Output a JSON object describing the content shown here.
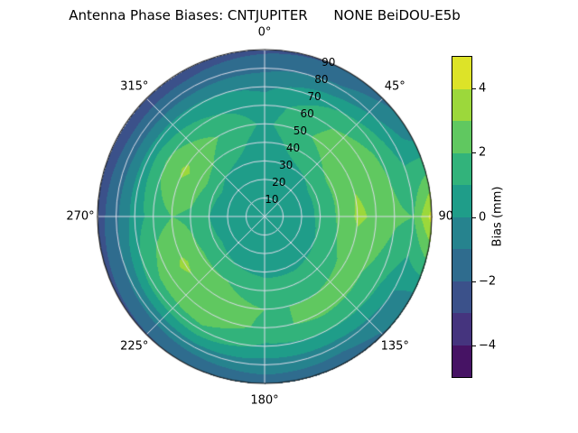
{
  "chart_data": {
    "type": "heatmap",
    "subtype": "polar_contourf",
    "title": "Antenna Phase Biases: CNTJUPITER      NONE BeiDOU-E5b",
    "angular_ticks": [
      {
        "angle": 0,
        "label": "0°"
      },
      {
        "angle": 45,
        "label": "45°"
      },
      {
        "angle": 90,
        "label": "90°"
      },
      {
        "angle": 135,
        "label": "135°"
      },
      {
        "angle": 180,
        "label": "180°"
      },
      {
        "angle": 225,
        "label": "225°"
      },
      {
        "angle": 270,
        "label": "270°"
      },
      {
        "angle": 315,
        "label": "315°"
      }
    ],
    "radial_ticks": [
      {
        "value": 10,
        "label": "10"
      },
      {
        "value": 20,
        "label": "20"
      },
      {
        "value": 30,
        "label": "30"
      },
      {
        "value": 40,
        "label": "40"
      },
      {
        "value": 50,
        "label": "50"
      },
      {
        "value": 60,
        "label": "60"
      },
      {
        "value": 70,
        "label": "70"
      },
      {
        "value": 80,
        "label": "80"
      },
      {
        "value": 90,
        "label": "90"
      }
    ],
    "radial_label_angle_deg": 22.5,
    "azimuth_deg": [
      0,
      30,
      60,
      90,
      120,
      150,
      180,
      210,
      240,
      270,
      300,
      330
    ],
    "zenith_deg": [
      0,
      10,
      20,
      30,
      40,
      50,
      60,
      70,
      80,
      90
    ],
    "bias_mm": [
      [
        0.3,
        0.3,
        0.3,
        0.3,
        0.3,
        0.3,
        0.3,
        0.3,
        0.3,
        0.3,
        0.3,
        0.3
      ],
      [
        0.3,
        0.3,
        0.4,
        0.4,
        0.4,
        0.3,
        0.3,
        0.3,
        0.4,
        0.3,
        0.4,
        0.3
      ],
      [
        0.4,
        0.5,
        0.6,
        0.6,
        0.5,
        0.5,
        0.5,
        0.5,
        0.6,
        0.5,
        0.6,
        0.5
      ],
      [
        0.5,
        0.8,
        1.2,
        1.2,
        1.0,
        0.8,
        0.8,
        1.0,
        1.2,
        1.0,
        1.2,
        0.8
      ],
      [
        0.5,
        1.5,
        2.2,
        2.2,
        1.8,
        1.5,
        1.5,
        2.0,
        2.2,
        1.8,
        2.6,
        1.5
      ],
      [
        0.8,
        2.0,
        2.8,
        3.2,
        2.2,
        2.0,
        2.0,
        2.4,
        3.2,
        2.0,
        3.2,
        2.0
      ],
      [
        0.5,
        1.8,
        2.6,
        2.8,
        2.0,
        2.2,
        1.8,
        2.6,
        2.6,
        1.5,
        2.2,
        1.2
      ],
      [
        -0.2,
        0.8,
        1.8,
        2.2,
        1.2,
        1.0,
        0.8,
        1.8,
        1.5,
        0.5,
        0.5,
        0.2
      ],
      [
        -1.2,
        -0.8,
        0.5,
        2.0,
        0.0,
        -0.5,
        -0.5,
        -0.5,
        -0.8,
        -1.2,
        -1.5,
        -1.5
      ],
      [
        -2.2,
        -2.0,
        -0.5,
        4.5,
        -0.5,
        -1.8,
        -1.5,
        -2.0,
        -2.2,
        -2.5,
        -2.6,
        -2.5
      ]
    ],
    "levels": {
      "min": -5,
      "max": 5,
      "step": 1
    },
    "grid_color": "#dcdcea",
    "colormap": {
      "name": "viridis",
      "stops": [
        "#440154",
        "#482878",
        "#3e4989",
        "#31688e",
        "#26828e",
        "#1f9e89",
        "#35b779",
        "#6ece58",
        "#b5de2b",
        "#fde725"
      ]
    },
    "colorbar": {
      "label": "Bias (mm)",
      "vmin": -5,
      "vmax": 5,
      "ticks": [
        {
          "value": 4,
          "label": "4"
        },
        {
          "value": 2,
          "label": "2"
        },
        {
          "value": 0,
          "label": "0"
        },
        {
          "value": -2,
          "label": "−2"
        },
        {
          "value": -4,
          "label": "−4"
        }
      ]
    }
  }
}
